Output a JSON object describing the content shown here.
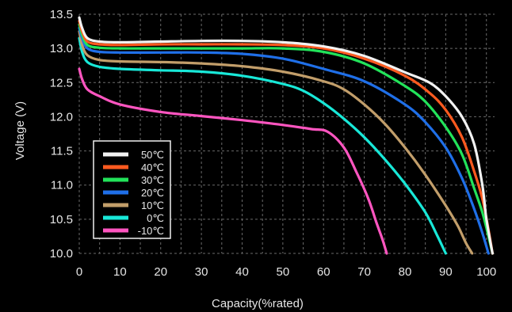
{
  "chart_data": {
    "type": "line",
    "xlabel": "Capacity(%rated)",
    "ylabel": "Voltage (V)",
    "xlim": [
      0,
      102
    ],
    "ylim": [
      10.0,
      13.5
    ],
    "x_ticks": [
      0,
      10,
      20,
      30,
      40,
      50,
      60,
      70,
      80,
      90,
      100
    ],
    "y_ticks": [
      10.0,
      10.5,
      11.0,
      11.5,
      12.0,
      12.5,
      13.0,
      13.5
    ],
    "x_tick_labels": [
      "0",
      "10",
      "20",
      "30",
      "40",
      "50",
      "60",
      "70",
      "80",
      "90",
      "100"
    ],
    "y_tick_labels": [
      "10.0",
      "10.5",
      "11.0",
      "11.5",
      "12.0",
      "12.5",
      "13.0",
      "13.5"
    ],
    "grid": "dashed",
    "legend_position": "bottom-left",
    "series": [
      {
        "name": "50℃",
        "color": "#f2f2f2",
        "x": [
          0,
          0.7,
          2,
          5,
          10,
          20,
          30,
          40,
          50,
          60,
          70,
          80,
          86,
          90,
          94,
          97,
          99,
          100,
          101.5
        ],
        "y": [
          13.45,
          13.3,
          13.15,
          13.1,
          13.09,
          13.1,
          13.11,
          13.11,
          13.09,
          13.03,
          12.89,
          12.65,
          12.5,
          12.3,
          12.0,
          11.6,
          11.0,
          10.5,
          10.0
        ]
      },
      {
        "name": "40℃",
        "color": "#ff5a1f",
        "x": [
          0,
          0.7,
          2,
          5,
          10,
          20,
          30,
          40,
          50,
          60,
          70,
          80,
          86,
          90,
          94,
          97,
          99,
          100.5,
          101.5
        ],
        "y": [
          13.4,
          13.25,
          13.1,
          13.06,
          13.05,
          13.06,
          13.06,
          13.06,
          13.05,
          13.0,
          12.85,
          12.6,
          12.35,
          12.1,
          11.7,
          11.2,
          10.8,
          10.35,
          10.0
        ]
      },
      {
        "name": "30℃",
        "color": "#22e35a",
        "x": [
          0,
          0.7,
          2,
          5,
          10,
          20,
          30,
          40,
          50,
          60,
          70,
          80,
          85,
          90,
          94,
          97,
          99,
          100.5,
          101.5
        ],
        "y": [
          13.35,
          13.2,
          13.05,
          13.01,
          13.0,
          13.0,
          13.0,
          13.0,
          13.0,
          12.95,
          12.78,
          12.45,
          12.22,
          11.85,
          11.45,
          10.95,
          10.6,
          10.25,
          10.0
        ]
      },
      {
        "name": "20℃",
        "color": "#1f6fe8",
        "x": [
          0,
          0.7,
          2,
          5,
          10,
          20,
          30,
          40,
          50,
          60,
          70,
          80,
          85,
          90,
          94,
          97,
          99,
          100.5
        ],
        "y": [
          13.3,
          13.15,
          13.0,
          12.95,
          12.94,
          12.94,
          12.94,
          12.92,
          12.85,
          12.7,
          12.52,
          12.18,
          11.92,
          11.55,
          11.1,
          10.65,
          10.3,
          10.0
        ]
      },
      {
        "name": "10℃",
        "color": "#c29e6a",
        "x": [
          0,
          0.7,
          2,
          5,
          10,
          20,
          30,
          40,
          50,
          60,
          65,
          70,
          75,
          80,
          85,
          90,
          93,
          95,
          96.5
        ],
        "y": [
          13.25,
          13.05,
          12.9,
          12.83,
          12.81,
          12.8,
          12.78,
          12.74,
          12.66,
          12.52,
          12.4,
          12.18,
          11.9,
          11.55,
          11.15,
          10.7,
          10.4,
          10.15,
          10.0
        ]
      },
      {
        "name": "0℃",
        "color": "#18e8d8",
        "x": [
          0,
          0.7,
          2,
          5,
          10,
          20,
          30,
          40,
          50,
          55,
          60,
          65,
          70,
          75,
          80,
          85,
          88,
          90
        ],
        "y": [
          13.15,
          12.95,
          12.8,
          12.73,
          12.7,
          12.68,
          12.66,
          12.6,
          12.48,
          12.38,
          12.2,
          11.97,
          11.7,
          11.38,
          11.02,
          10.6,
          10.25,
          10.0
        ]
      },
      {
        "name": "-10℃",
        "color": "#ff55c0",
        "x": [
          0,
          0.7,
          2,
          5,
          10,
          20,
          30,
          40,
          50,
          57,
          61,
          65,
          68,
          71,
          73,
          74.5,
          75.5
        ],
        "y": [
          12.7,
          12.55,
          12.4,
          12.3,
          12.18,
          12.07,
          12.01,
          11.95,
          11.88,
          11.82,
          11.78,
          11.55,
          11.2,
          10.8,
          10.45,
          10.2,
          10.0
        ]
      }
    ]
  }
}
